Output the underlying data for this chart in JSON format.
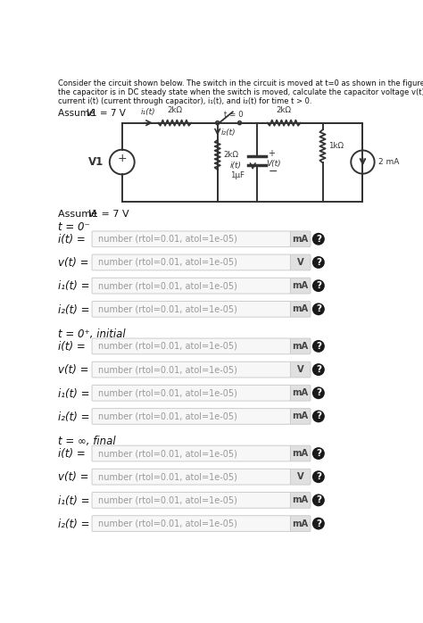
{
  "bg_color": "#ffffff",
  "sections": [
    {
      "label": "t = 0⁻",
      "rows": [
        {
          "var": "i(t) =",
          "unit": "mA"
        },
        {
          "var": "v(t) =",
          "unit": "V"
        },
        {
          "var": "i₁(t) =",
          "unit": "mA"
        },
        {
          "var": "i₂(t) =",
          "unit": "mA"
        }
      ]
    },
    {
      "label": "t = 0⁺, initial",
      "rows": [
        {
          "var": "i(t) =",
          "unit": "mA"
        },
        {
          "var": "v(t) =",
          "unit": "V"
        },
        {
          "var": "i₁(t) =",
          "unit": "mA"
        },
        {
          "var": "i₂(t) =",
          "unit": "mA"
        }
      ]
    },
    {
      "label": "t = ∞, final",
      "rows": [
        {
          "var": "i(t) =",
          "unit": "mA"
        },
        {
          "var": "v(t) =",
          "unit": "V"
        },
        {
          "var": "i₁(t) =",
          "unit": "mA"
        },
        {
          "var": "i₂(t) =",
          "unit": "mA"
        }
      ]
    }
  ],
  "input_placeholder": "number (rtol=0.01, atol=1e-05)",
  "input_bg": "#f7f7f7",
  "input_border": "#cccccc",
  "unit_bg": "#e0e0e0",
  "circle_color": "#1a1a1a",
  "circle_text_color": "#ffffff",
  "text_color": "#111111"
}
